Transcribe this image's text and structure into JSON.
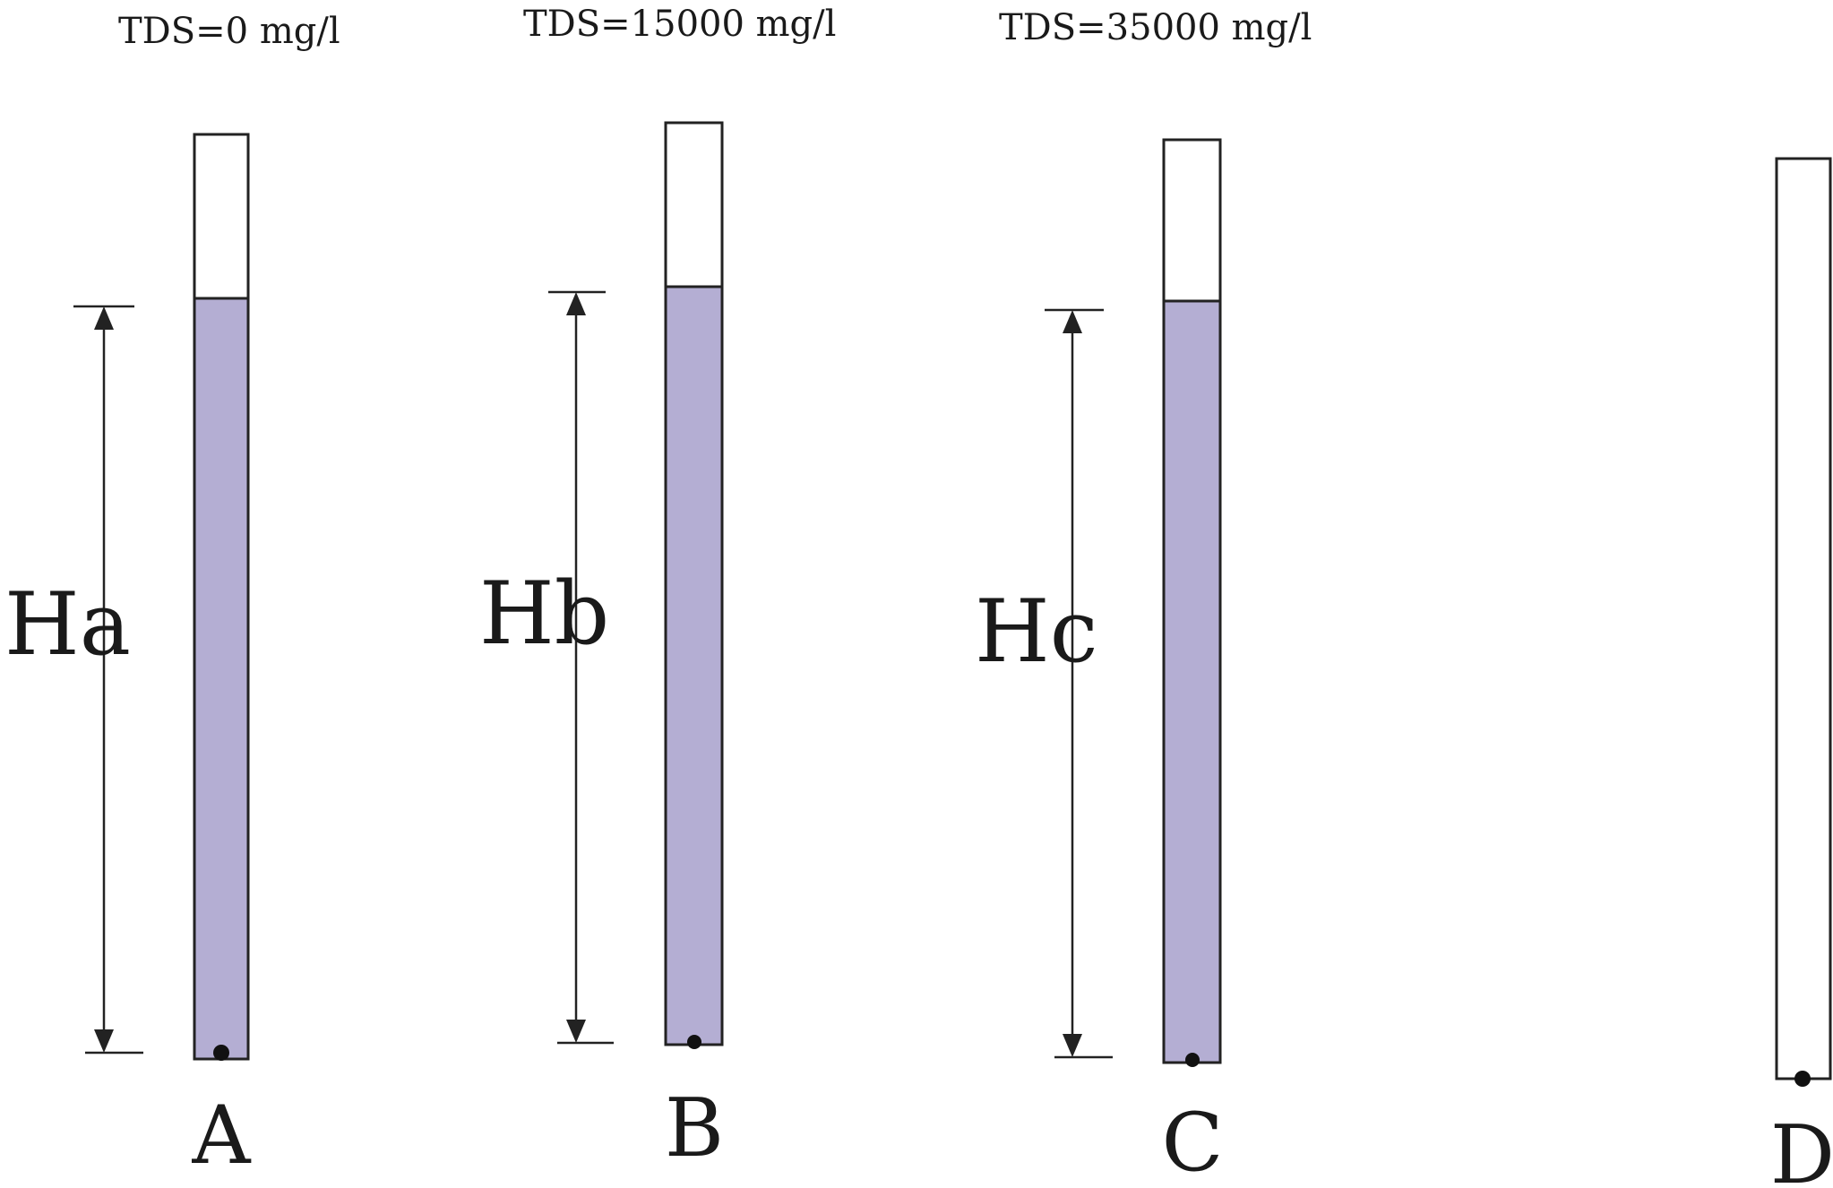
{
  "colors": {
    "liquid": "#b4aed3",
    "outline": "#222222",
    "background": "#ffffff"
  },
  "tubes": [
    {
      "id": "a",
      "tds_label": "TDS=0 mg/l",
      "height_label": "Ha",
      "tube_label": "A",
      "filled": true
    },
    {
      "id": "b",
      "tds_label": "TDS=15000 mg/l",
      "height_label": "Hb",
      "tube_label": "B",
      "filled": true
    },
    {
      "id": "c",
      "tds_label": "TDS=35000 mg/l",
      "height_label": "Hc",
      "tube_label": "C",
      "filled": true
    },
    {
      "id": "d",
      "tds_label": "",
      "height_label": "",
      "tube_label": "D",
      "filled": false
    }
  ]
}
